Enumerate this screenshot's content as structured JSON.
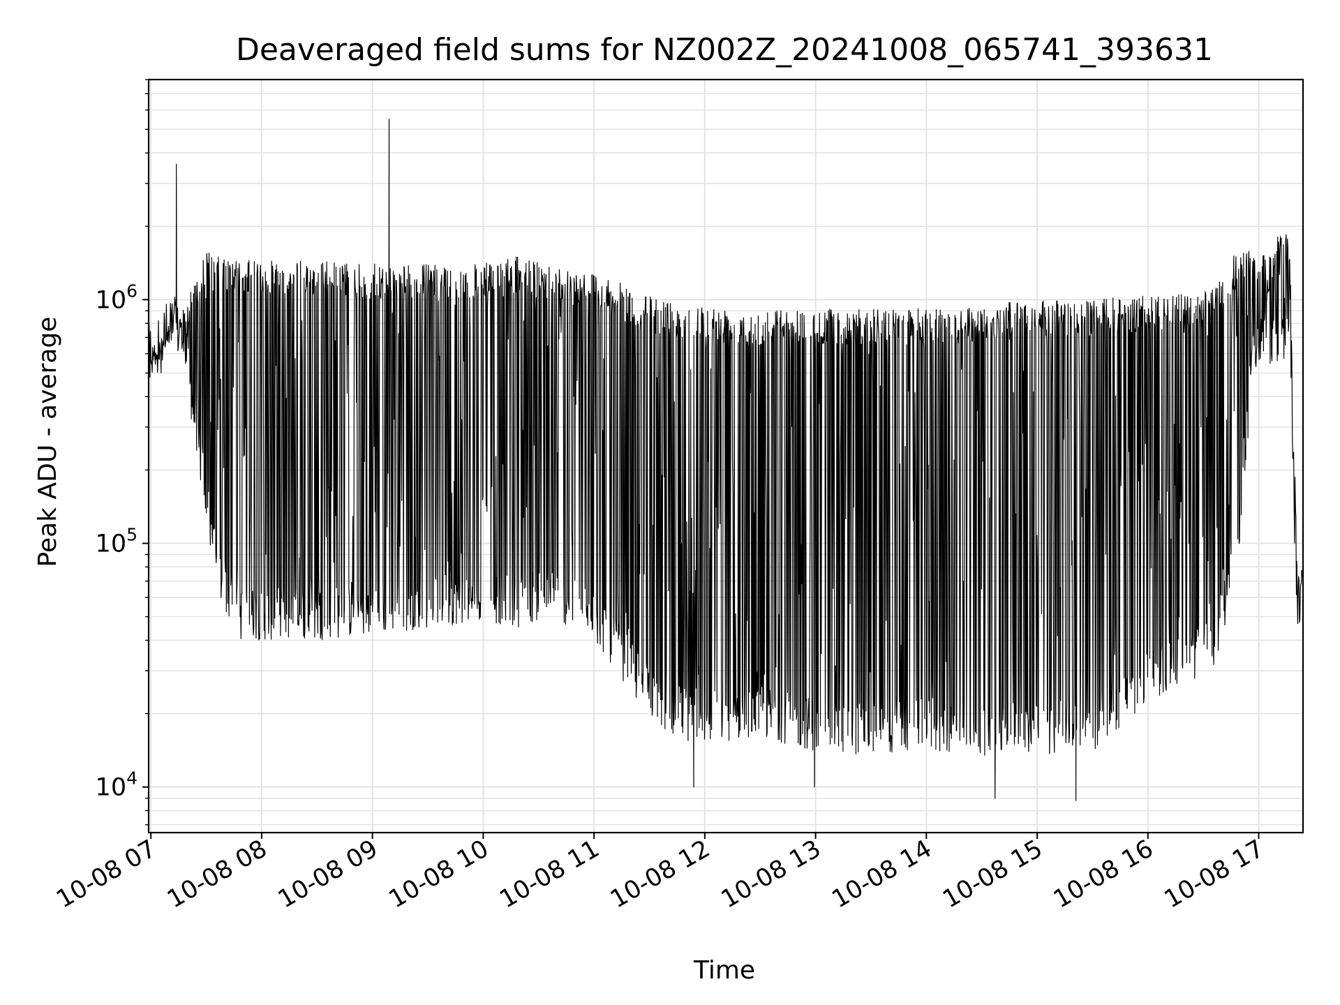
{
  "chart_data": {
    "type": "line",
    "title": "Deaveraged field sums for NZ002Z_20241008_065741_393631",
    "xlabel": "Time",
    "ylabel": "Peak ADU - average",
    "x_tick_labels": [
      "10-08 07",
      "10-08 08",
      "10-08 09",
      "10-08 10",
      "10-08 11",
      "10-08 12",
      "10-08 13",
      "10-08 14",
      "10-08 15",
      "10-08 16",
      "10-08 17"
    ],
    "x_tick_hours": [
      7,
      8,
      9,
      10,
      11,
      12,
      13,
      14,
      15,
      16,
      17
    ],
    "xlim_hours": [
      6.98,
      17.4
    ],
    "y_scale": "log",
    "ylim": [
      6500,
      8000000
    ],
    "y_major_ticks": [
      {
        "value": 10000,
        "base": "10",
        "exp": "4"
      },
      {
        "value": 100000,
        "base": "10",
        "exp": "5"
      },
      {
        "value": 1000000,
        "base": "10",
        "exp": "6"
      }
    ],
    "grid": true,
    "line_color": "#000000",
    "series": [
      {
        "envelope": {
          "x_hours": [
            6.98,
            7.1,
            7.2,
            7.3,
            7.4,
            7.5,
            7.6,
            7.8,
            8.0,
            8.5,
            9.0,
            9.5,
            10.0,
            10.3,
            10.6,
            11.0,
            11.2,
            11.4,
            11.7,
            12.0,
            12.5,
            13.0,
            13.5,
            14.0,
            14.5,
            15.0,
            15.5,
            16.0,
            16.3,
            16.6,
            16.8,
            16.95,
            17.1,
            17.2,
            17.28,
            17.3,
            17.35,
            17.4
          ],
          "upper": [
            650000,
            700000,
            1000000,
            900000,
            1300000,
            1600000,
            1500000,
            1450000,
            1450000,
            1450000,
            1400000,
            1400000,
            1400000,
            1500000,
            1400000,
            1300000,
            1200000,
            1050000,
            1000000,
            950000,
            920000,
            920000,
            920000,
            920000,
            950000,
            1000000,
            1000000,
            1050000,
            1050000,
            1100000,
            1600000,
            1600000,
            1500000,
            2000000,
            1900000,
            600000,
            80000,
            80000
          ],
          "lower": [
            480000,
            560000,
            650000,
            500000,
            250000,
            120000,
            60000,
            40000,
            40000,
            40000,
            42000,
            45000,
            48000,
            45000,
            50000,
            40000,
            30000,
            22000,
            16000,
            15000,
            16000,
            14000,
            13500,
            14000,
            13500,
            13500,
            14000,
            22000,
            26000,
            30000,
            70000,
            500000,
            500000,
            550000,
            500000,
            200000,
            45000,
            50000
          ]
        },
        "spikes": [
          {
            "x_hour": 7.23,
            "y": 3600000
          },
          {
            "x_hour": 9.15,
            "y": 5500000
          }
        ],
        "dips": [
          {
            "x_hour": 11.9,
            "y": 10000
          },
          {
            "x_hour": 12.99,
            "y": 10000
          },
          {
            "x_hour": 14.62,
            "y": 9000
          },
          {
            "x_hour": 15.35,
            "y": 8800
          }
        ]
      }
    ]
  }
}
